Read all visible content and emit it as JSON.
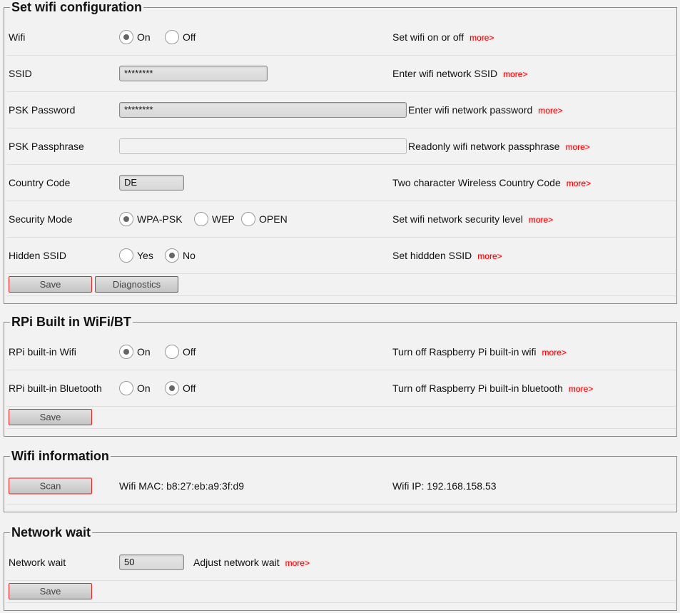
{
  "wifi_config": {
    "title": "Set wifi configuration",
    "wifi": {
      "label": "Wifi",
      "opt_on": "On",
      "opt_off": "Off",
      "selected": "On",
      "desc": "Set wifi on or off"
    },
    "ssid": {
      "label": "SSID",
      "value": "********",
      "desc": "Enter wifi network SSID"
    },
    "psk_password": {
      "label": "PSK Password",
      "value": "********",
      "desc": "Enter wifi network password"
    },
    "psk_passphrase": {
      "label": "PSK Passphrase",
      "value": "",
      "desc": "Readonly wifi network passphrase"
    },
    "country": {
      "label": "Country Code",
      "value": "DE",
      "desc": "Two character Wireless Country Code"
    },
    "security": {
      "label": "Security Mode",
      "opt1": "WPA-PSK",
      "opt2": "WEP",
      "opt3": "OPEN",
      "selected": "WPA-PSK",
      "desc": "Set wifi network security level"
    },
    "hidden": {
      "label": "Hidden SSID",
      "opt_yes": "Yes",
      "opt_no": "No",
      "selected": "No",
      "desc": "Set hiddden SSID"
    },
    "save": "Save",
    "diagnostics": "Diagnostics"
  },
  "rpi": {
    "title": "RPi Built in WiFi/BT",
    "wifi": {
      "label": "RPi built-in Wifi",
      "opt_on": "On",
      "opt_off": "Off",
      "selected": "On",
      "desc": "Turn off Raspberry Pi built-in wifi"
    },
    "bt": {
      "label": "RPi built-in Bluetooth",
      "opt_on": "On",
      "opt_off": "Off",
      "selected": "Off",
      "desc": "Turn off Raspberry Pi built-in bluetooth"
    },
    "save": "Save"
  },
  "info": {
    "title": "Wifi information",
    "scan": "Scan",
    "mac": "Wifi MAC: b8:27:eb:a9:3f:d9",
    "ip": "Wifi IP: 192.168.158.53"
  },
  "netwait": {
    "title": "Network wait",
    "label": "Network wait",
    "value": "50",
    "desc": "Adjust network wait",
    "save": "Save"
  },
  "more": "more>",
  "colors": {
    "more_link": "#ee0000",
    "button_border": "#ee2222",
    "background": "#f2f2f2"
  }
}
